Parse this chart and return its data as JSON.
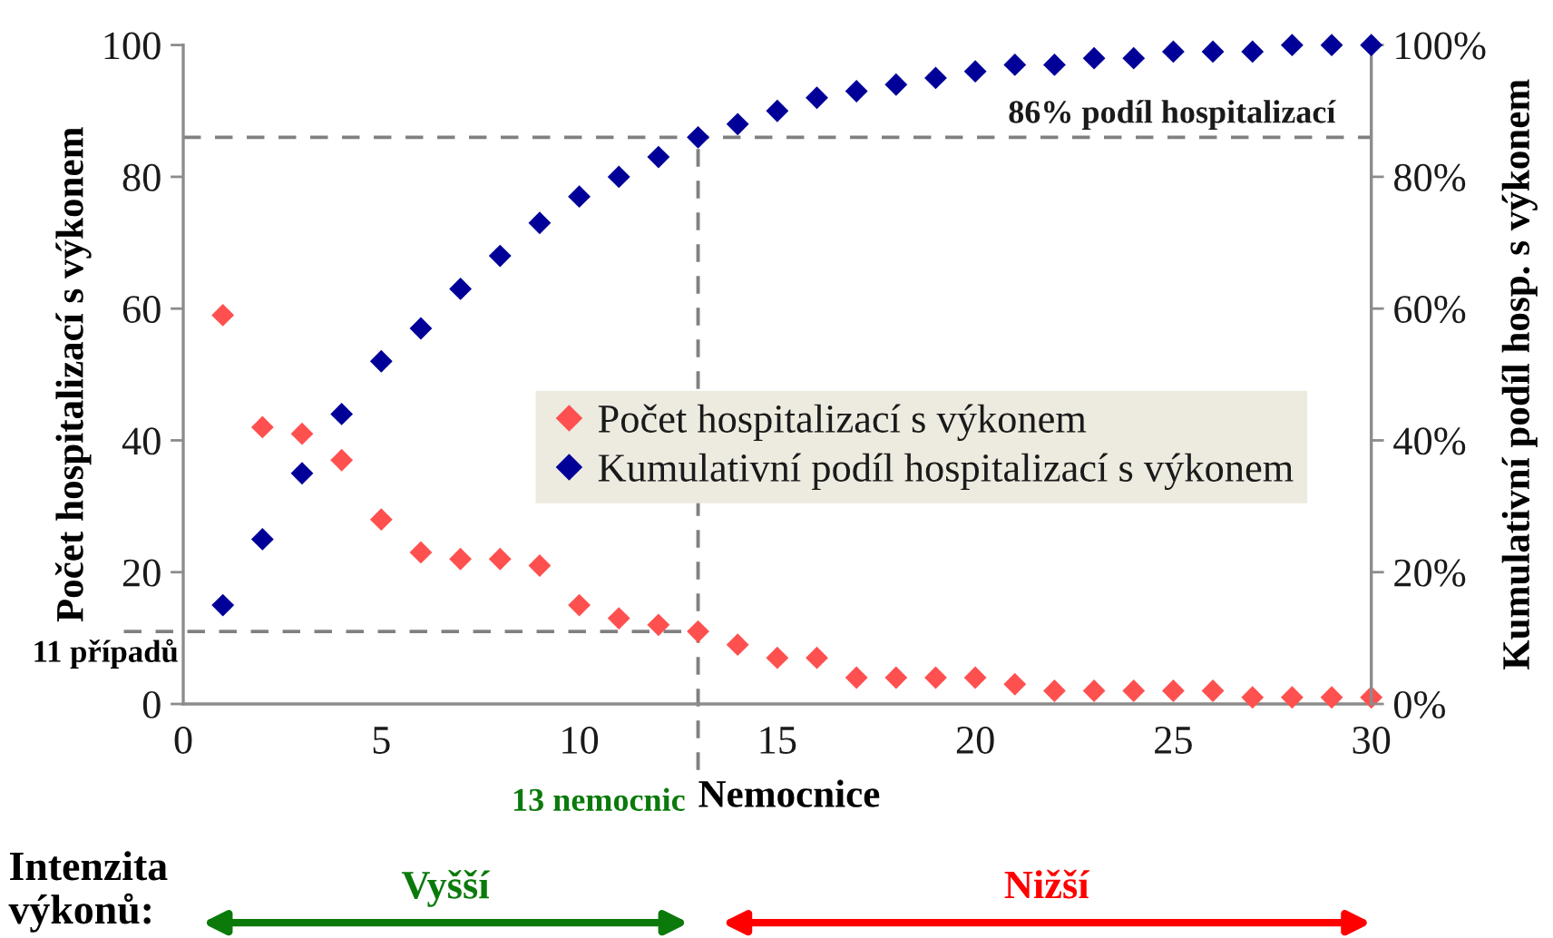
{
  "chart_data": {
    "type": "scatter",
    "xlabel": "Nemocnice",
    "ylabel": "Počet hospitalizací s výkonem",
    "y2label": "Kumulativní podíl hosp. s výkonem",
    "x": [
      1,
      2,
      3,
      4,
      5,
      6,
      7,
      8,
      9,
      10,
      11,
      12,
      13,
      14,
      15,
      16,
      17,
      18,
      19,
      20,
      21,
      22,
      23,
      24,
      25,
      26,
      27,
      28,
      29,
      30
    ],
    "series": [
      {
        "name": "Počet hospitalizací s výkonem",
        "color": "#ff5050",
        "values": [
          59,
          42,
          41,
          37,
          28,
          23,
          22,
          22,
          21,
          15,
          13,
          12,
          11,
          9,
          7,
          7,
          4,
          4,
          4,
          4,
          3,
          2,
          2,
          2,
          2,
          2,
          1,
          1,
          1,
          1
        ]
      },
      {
        "name": "Kumulativní podíl hospitalizací s výkonem",
        "color": "#000099",
        "axis": "y2",
        "values": [
          15,
          25,
          35,
          44,
          52,
          57,
          63,
          68,
          73,
          77,
          80,
          83,
          86,
          88,
          90,
          92,
          93,
          94,
          95,
          96,
          97,
          97,
          98,
          98,
          99,
          99,
          99,
          100,
          100,
          100
        ]
      }
    ],
    "xlim": [
      0,
      30
    ],
    "xticks": [
      0,
      5,
      10,
      15,
      20,
      25,
      30
    ],
    "ylim": [
      0,
      100
    ],
    "yticks": [
      0,
      20,
      40,
      60,
      80,
      100
    ],
    "y2lim": [
      0,
      100
    ],
    "y2ticks": [
      {
        "value": 0,
        "label": "0%"
      },
      {
        "value": 20,
        "label": "20%"
      },
      {
        "value": 40,
        "label": "40%"
      },
      {
        "value": 60,
        "label": "60%"
      },
      {
        "value": 80,
        "label": "80%"
      },
      {
        "value": 100,
        "label": "100%"
      }
    ],
    "marker": "diamond",
    "legend": "center right",
    "ref_lines": [
      {
        "axis": "y",
        "value": 11,
        "label": "11 případů",
        "color": "#808080",
        "line_style": "dashed"
      },
      {
        "axis": "y2",
        "value": 86,
        "label": "86% podíl hospitalizací",
        "color": "#808080",
        "line_style": "dashed"
      },
      {
        "axis": "x",
        "value": 13,
        "label": "13 nemocnic",
        "color": "#808080",
        "line_style": "dashed"
      }
    ],
    "annotations": [
      "Intenzita\nvýkonů:",
      "Vyšší",
      "Nižší"
    ]
  }
}
